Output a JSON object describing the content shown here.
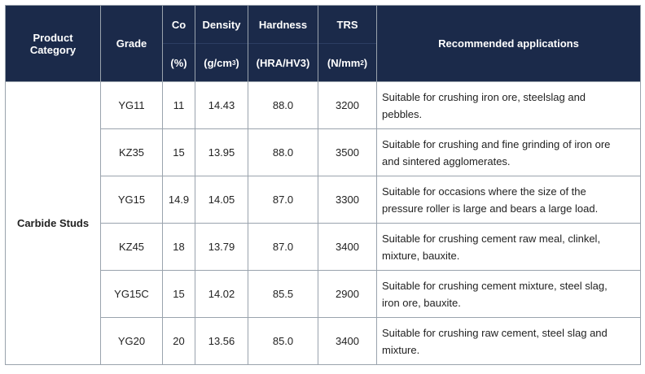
{
  "header": {
    "category_line1": "Product",
    "category_line2": "Category",
    "grade": "Grade",
    "co_top": "Co",
    "co_unit": "(%)",
    "density_top": "Density",
    "density_unit_pre": "(g/cm",
    "density_unit_sup": "3",
    "density_unit_post": ")",
    "hardness_top": "Hardness",
    "hardness_unit": "(HRA/HV3)",
    "trs_top": "TRS",
    "trs_unit_pre": "(N/mm",
    "trs_unit_sup": "2",
    "trs_unit_post": ")",
    "applications": "Recommended applications"
  },
  "category": "Carbide Studs",
  "rows": [
    {
      "grade": "YG11",
      "co": "11",
      "density": "14.43",
      "hardness": "88.0",
      "trs": "3200",
      "app1": "Suitable for crushing iron ore, steelslag and",
      "app2": "pebbles."
    },
    {
      "grade": "KZ35",
      "co": "15",
      "density": "13.95",
      "hardness": "88.0",
      "trs": "3500",
      "app1": "Suitable for crushing and fine grinding of iron ore",
      "app2": "and sintered agglomerates."
    },
    {
      "grade": "YG15",
      "co": "14.9",
      "density": "14.05",
      "hardness": "87.0",
      "trs": "3300",
      "app1": "Suitable for occasions where the size of the",
      "app2": "pressure roller is large and bears a large load."
    },
    {
      "grade": "KZ45",
      "co": "18",
      "density": "13.79",
      "hardness": "87.0",
      "trs": "3400",
      "app1": "Suitable for crushing cement raw meal, clinkel,",
      "app2": "mixture, bauxite."
    },
    {
      "grade": "YG15C",
      "co": "15",
      "density": "14.02",
      "hardness": "85.5",
      "trs": "2900",
      "app1": "Suitable for crushing cement mixture, steel slag,",
      "app2": "iron ore, bauxite."
    },
    {
      "grade": "YG20",
      "co": "20",
      "density": "13.56",
      "hardness": "85.0",
      "trs": "3400",
      "app1": "Suitable for crushing raw cement, steel slag and",
      "app2": "mixture."
    }
  ]
}
